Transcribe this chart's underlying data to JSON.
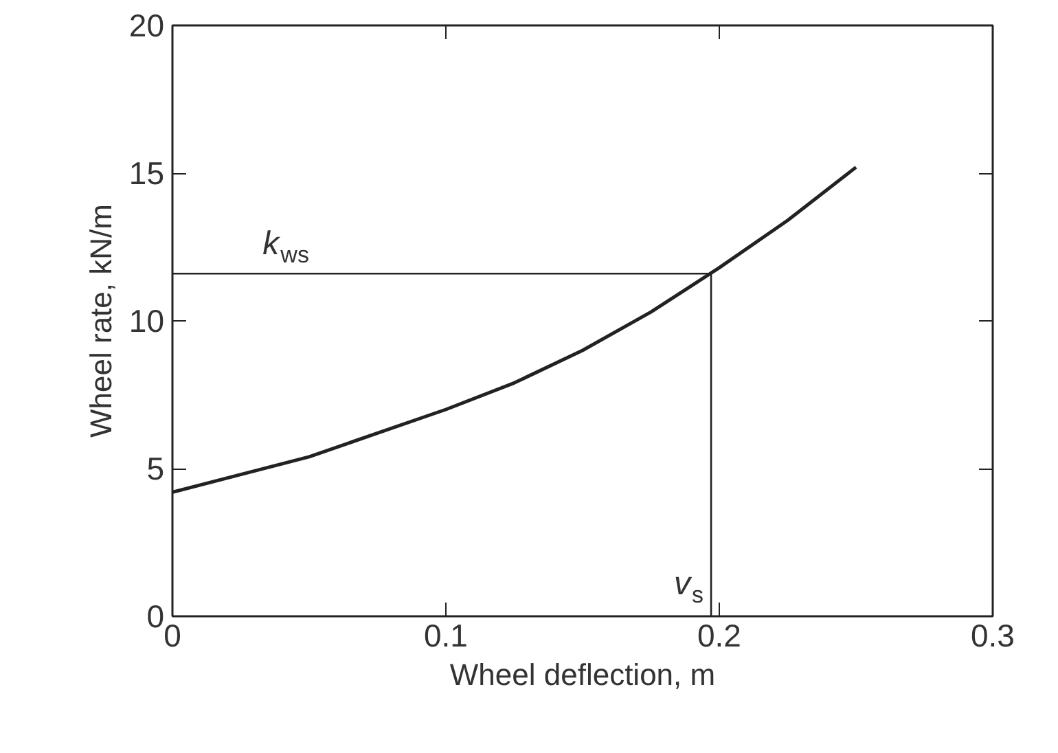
{
  "chart_data": {
    "type": "line",
    "xlabel": "Wheel deflection, m",
    "ylabel": "Wheel rate, kN/m",
    "x": [
      0,
      0.025,
      0.05,
      0.075,
      0.1,
      0.125,
      0.15,
      0.175,
      0.2,
      0.225,
      0.25
    ],
    "series": [
      {
        "color": "#222222",
        "values": [
          4.2,
          4.8,
          5.4,
          6.2,
          7.0,
          7.9,
          9.0,
          10.3,
          11.8,
          13.4,
          15.2
        ]
      }
    ],
    "xlim": [
      0,
      0.3
    ],
    "ylim": [
      0,
      20
    ],
    "xticks": [
      0,
      0.1,
      0.2,
      0.3
    ],
    "yticks": [
      0,
      5,
      10,
      15,
      20
    ],
    "grid": false,
    "marker": "none",
    "line_style": "solid",
    "ref_lines": [
      {
        "axis": "y",
        "value": 11.6,
        "label": "k$_{ws}$",
        "color": "#222222"
      },
      {
        "axis": "x",
        "value": 0.197,
        "label": "v$_{s}$",
        "color": "#222222"
      }
    ]
  }
}
